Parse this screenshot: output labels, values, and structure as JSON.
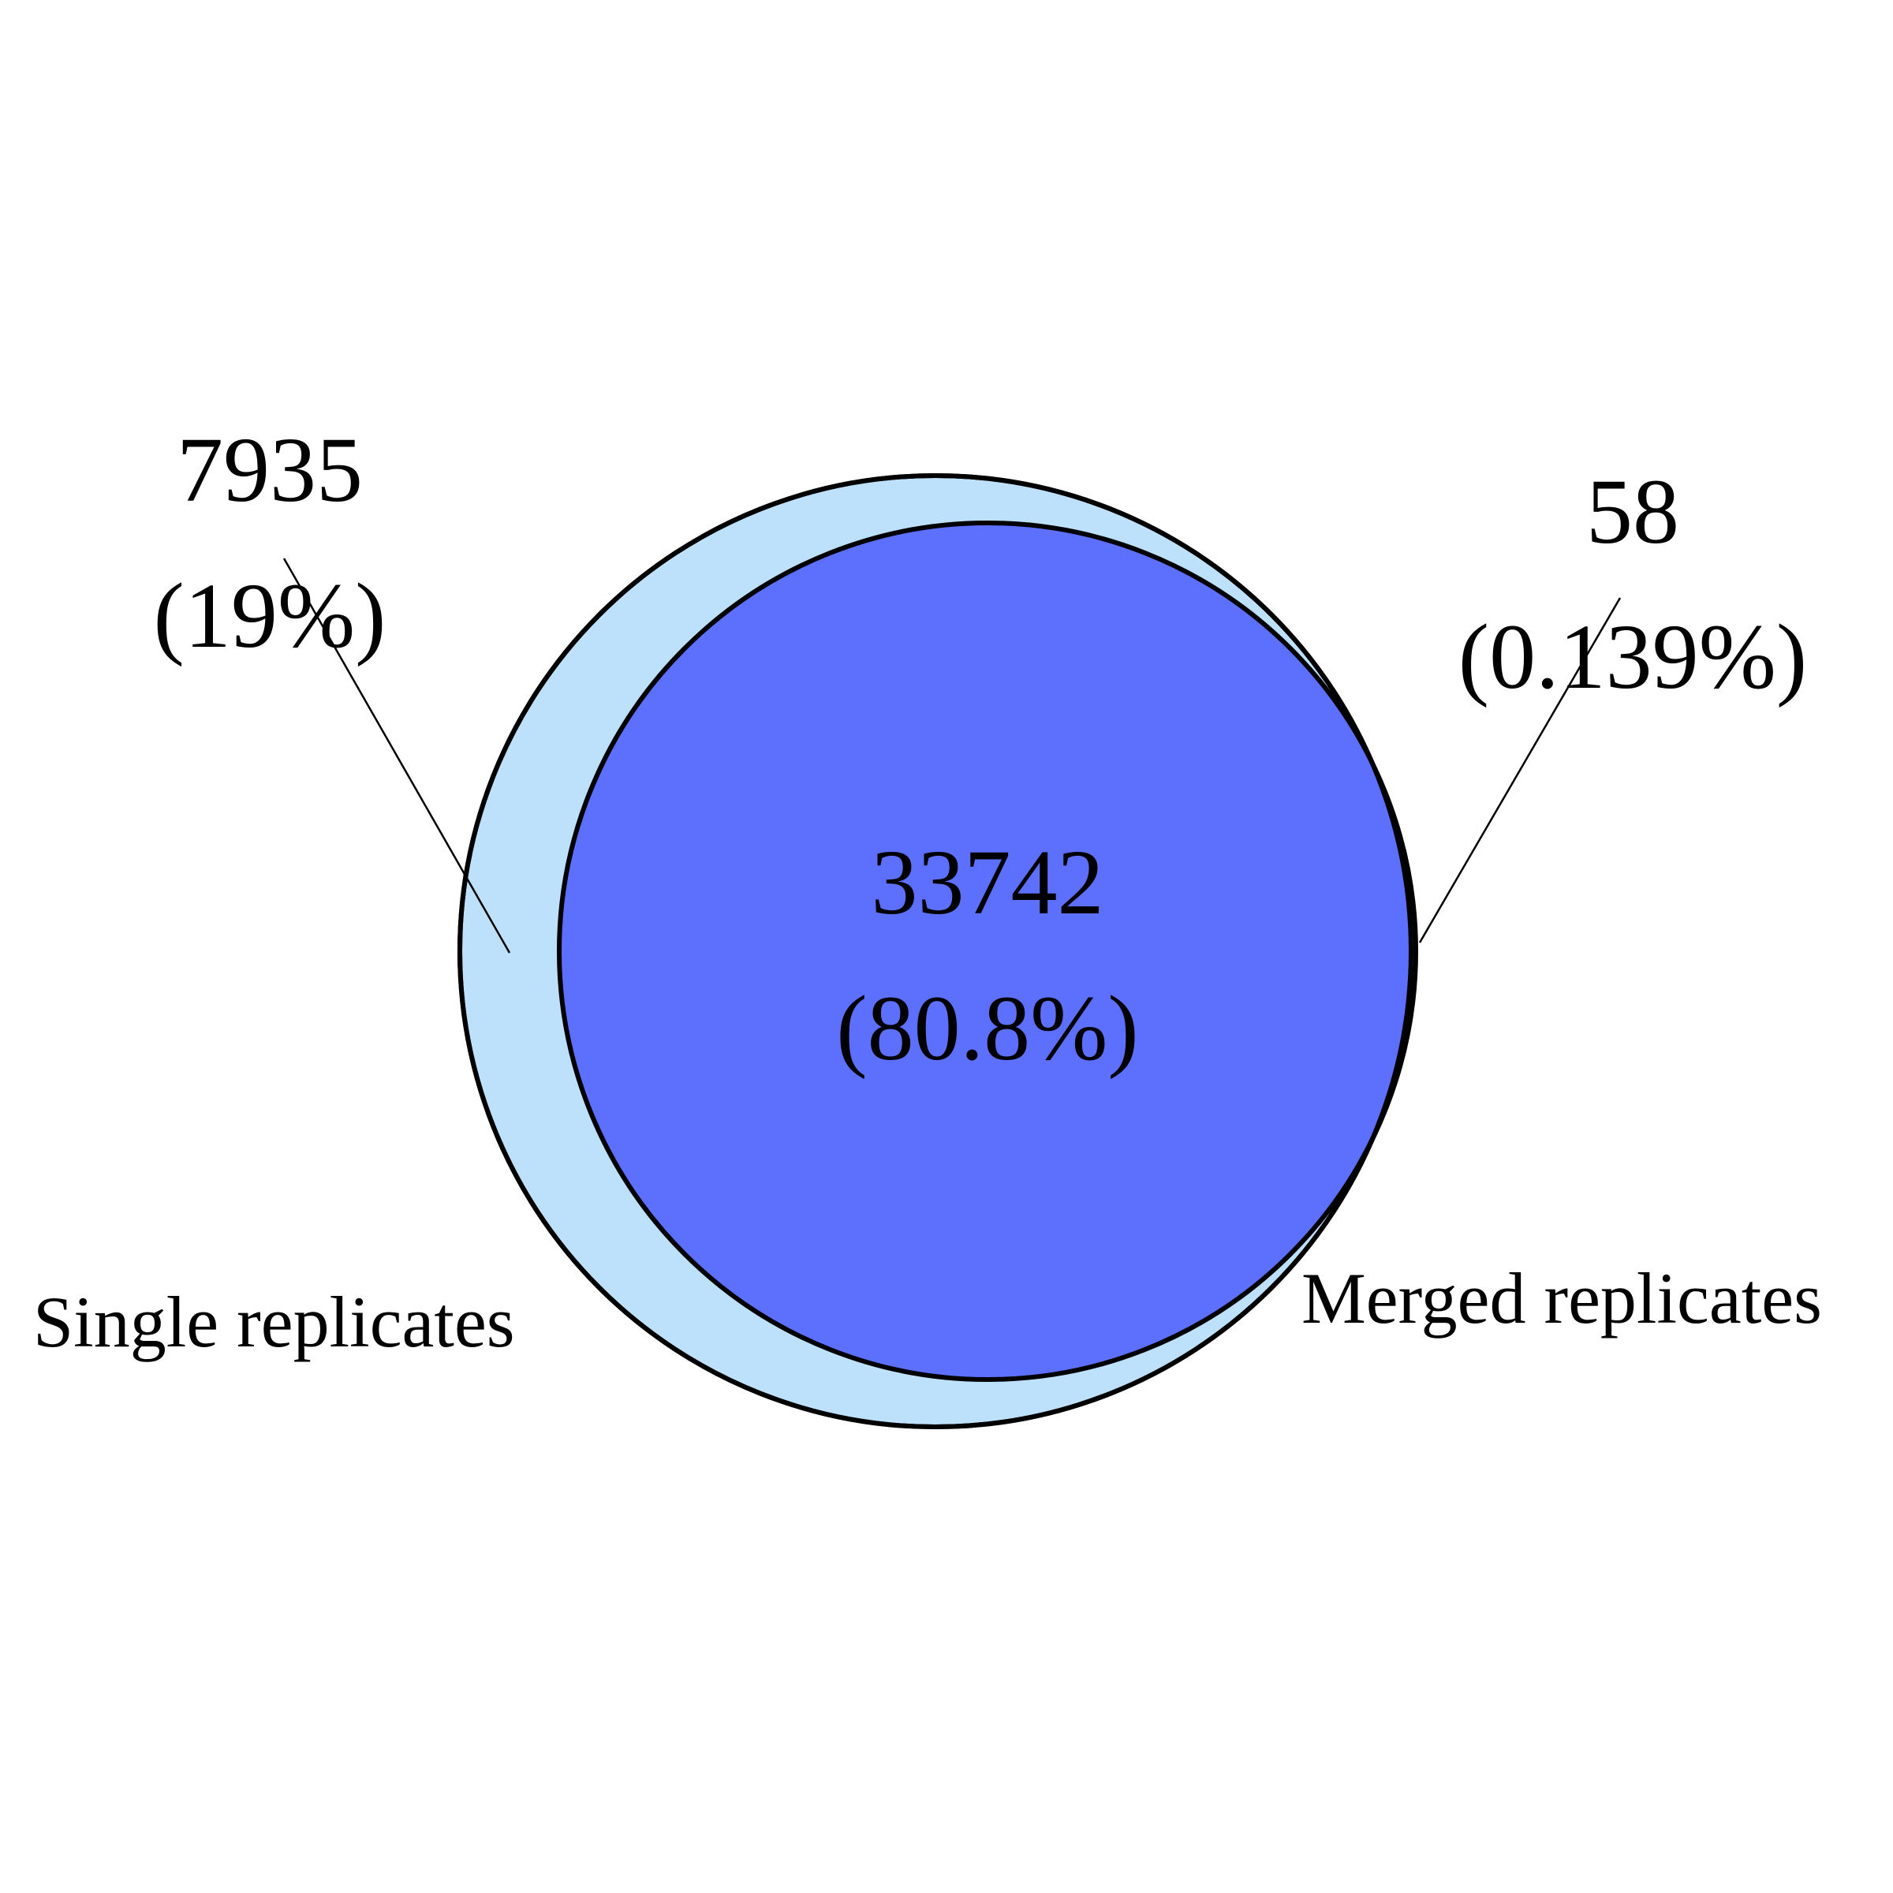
{
  "venn": {
    "colors": {
      "single_only": "#bde0fb",
      "intersection": "#5c6ffd",
      "outline": "#000000",
      "background": "#ffffff"
    },
    "sets": {
      "left": {
        "label": "Single replicates"
      },
      "right": {
        "label": "Merged replicates"
      }
    },
    "regions": {
      "left_only": {
        "count": "7935",
        "percent": "(19%)"
      },
      "intersection": {
        "count": "33742",
        "percent": "(80.8%)"
      },
      "right_only": {
        "count": "58",
        "percent": "(0.139%)"
      }
    }
  }
}
